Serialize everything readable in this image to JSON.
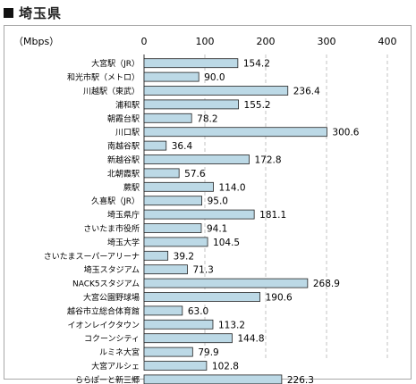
{
  "header": {
    "title": "埼玉県"
  },
  "chart_data": {
    "type": "bar",
    "orientation": "horizontal",
    "title": "埼玉県",
    "unit_label": "（Mbps）",
    "xlim": [
      0,
      400
    ],
    "x_ticks": [
      "0",
      "100",
      "200",
      "300",
      "400"
    ],
    "grid": "vertical dashed",
    "categories": [
      "大宮駅（JR）",
      "和光市駅（メトロ）",
      "川越駅（東武）",
      "浦和駅",
      "朝霞台駅",
      "川口駅",
      "南越谷駅",
      "新越谷駅",
      "北朝霞駅",
      "蕨駅",
      "久喜駅（JR）",
      "埼玉県庁",
      "さいたま市役所",
      "埼玉大学",
      "さいたまスーパーアリーナ",
      "埼玉スタジアム",
      "NACK5スタジアム",
      "大宮公園野球場",
      "越谷市立総合体育館",
      "イオンレイクタウン",
      "コクーンシティ",
      "ルミネ大宮",
      "大宮アルシェ",
      "ららぽーと新三郷"
    ],
    "values": [
      154.2,
      90.0,
      236.4,
      155.2,
      78.2,
      300.6,
      36.4,
      172.8,
      57.6,
      114.0,
      95.0,
      181.1,
      94.1,
      104.5,
      39.2,
      71.3,
      268.9,
      190.6,
      63.0,
      113.2,
      144.8,
      79.9,
      102.8,
      226.3
    ],
    "value_labels": [
      "154.2",
      "90.0",
      "236.4",
      "155.2",
      "78.2",
      "300.6",
      "36.4",
      "172.8",
      "57.6",
      "114.0",
      "95.0",
      "181.1",
      "94.1",
      "104.5",
      "39.2",
      "71.3",
      "268.9",
      "190.6",
      "63.0",
      "113.2",
      "144.8",
      "79.9",
      "102.8",
      "226.3"
    ],
    "bar_color": "#bcd9e6",
    "bar_border": "#222222"
  }
}
